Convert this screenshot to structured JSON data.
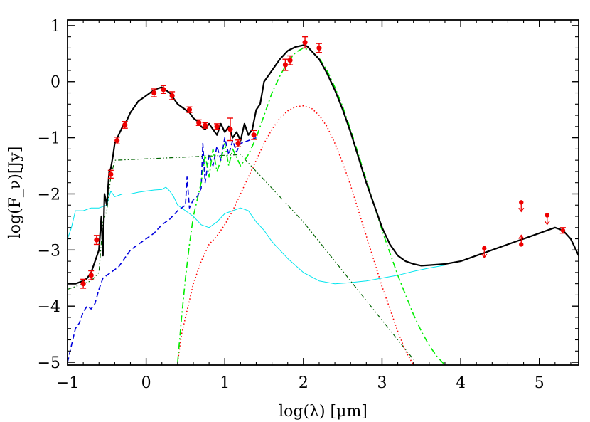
{
  "chart_data": {
    "type": "line",
    "title": "",
    "xlabel": "log(λ) [μm]",
    "ylabel": "log(F_ν)[Jy]",
    "xlim": [
      -1,
      5.5
    ],
    "ylim": [
      -5.05,
      1.1
    ],
    "x_ticks": [
      -1,
      0,
      1,
      2,
      3,
      4,
      5
    ],
    "x_tick_labels": [
      "−1",
      "0",
      "1",
      "2",
      "3",
      "4",
      "5"
    ],
    "y_ticks": [
      -5,
      -4,
      -3,
      -2,
      -1,
      0,
      1
    ],
    "y_tick_labels": [
      "−5",
      "−4",
      "−3",
      "−2",
      "−1",
      "0",
      "1"
    ],
    "grid": false,
    "colors": {
      "total": "#000000",
      "stellar": "#00e5ee",
      "hot_dust": "#0000dd",
      "warm_dust": "#00ee00",
      "cold_dust": "#ff0000",
      "scattered": "#006400",
      "points": "#ee0000"
    },
    "series": [
      {
        "key": "total",
        "style": "solid",
        "x": [
          -1.0,
          -0.9,
          -0.8,
          -0.75,
          -0.7,
          -0.65,
          -0.6,
          -0.57,
          -0.55,
          -0.53,
          -0.5,
          -0.47,
          -0.45,
          -0.42,
          -0.4,
          -0.35,
          -0.3,
          -0.25,
          -0.2,
          -0.15,
          -0.1,
          -0.05,
          0.0,
          0.05,
          0.1,
          0.15,
          0.2,
          0.25,
          0.3,
          0.35,
          0.4,
          0.45,
          0.5,
          0.55,
          0.6,
          0.65,
          0.7,
          0.75,
          0.8,
          0.85,
          0.9,
          0.95,
          1.0,
          1.05,
          1.1,
          1.15,
          1.2,
          1.25,
          1.3,
          1.35,
          1.4,
          1.45,
          1.5,
          1.55,
          1.6,
          1.7,
          1.8,
          1.9,
          2.0,
          2.05,
          2.1,
          2.2,
          2.3,
          2.4,
          2.5,
          2.6,
          2.7,
          2.8,
          2.9,
          3.0,
          3.1,
          3.2,
          3.3,
          3.4,
          3.5,
          3.6,
          3.8,
          4.0,
          4.2,
          4.4,
          4.6,
          4.8,
          5.0,
          5.1,
          5.2,
          5.3,
          5.4,
          5.5
        ],
        "y": [
          -3.6,
          -3.6,
          -3.55,
          -3.5,
          -3.4,
          -3.2,
          -3.0,
          -2.4,
          -3.1,
          -2.0,
          -2.2,
          -1.6,
          -1.55,
          -1.3,
          -1.1,
          -0.95,
          -0.8,
          -0.7,
          -0.55,
          -0.45,
          -0.35,
          -0.3,
          -0.25,
          -0.2,
          -0.15,
          -0.12,
          -0.1,
          -0.15,
          -0.2,
          -0.3,
          -0.4,
          -0.45,
          -0.5,
          -0.55,
          -0.65,
          -0.7,
          -0.8,
          -0.85,
          -0.75,
          -0.85,
          -0.95,
          -0.75,
          -0.9,
          -0.8,
          -1.0,
          -0.9,
          -1.05,
          -0.75,
          -0.95,
          -0.85,
          -0.5,
          -0.4,
          0.0,
          0.1,
          0.2,
          0.4,
          0.55,
          0.62,
          0.65,
          0.63,
          0.55,
          0.4,
          0.15,
          -0.15,
          -0.5,
          -0.9,
          -1.35,
          -1.8,
          -2.2,
          -2.6,
          -2.9,
          -3.1,
          -3.2,
          -3.25,
          -3.28,
          -3.27,
          -3.25,
          -3.2,
          -3.1,
          -3.0,
          -2.9,
          -2.8,
          -2.7,
          -2.65,
          -2.6,
          -2.65,
          -2.8,
          -3.1
        ]
      },
      {
        "key": "stellar",
        "style": "thin",
        "x": [
          -1.0,
          -0.95,
          -0.9,
          -0.8,
          -0.7,
          -0.6,
          -0.5,
          -0.45,
          -0.4,
          -0.3,
          -0.2,
          -0.1,
          0.0,
          0.1,
          0.2,
          0.25,
          0.3,
          0.35,
          0.4,
          0.5,
          0.6,
          0.7,
          0.8,
          0.9,
          1.0,
          1.1,
          1.2,
          1.3,
          1.4,
          1.5,
          1.6,
          1.8,
          2.0,
          2.2,
          2.4,
          2.6,
          2.8,
          3.0,
          3.2,
          3.4,
          3.6,
          3.8
        ],
        "y": [
          -2.8,
          -2.6,
          -2.3,
          -2.3,
          -2.25,
          -2.25,
          -2.2,
          -1.95,
          -2.05,
          -2.0,
          -2.0,
          -1.97,
          -1.95,
          -1.93,
          -1.92,
          -1.88,
          -1.95,
          -2.05,
          -2.2,
          -2.3,
          -2.4,
          -2.55,
          -2.6,
          -2.5,
          -2.35,
          -2.3,
          -2.25,
          -2.3,
          -2.5,
          -2.65,
          -2.85,
          -3.15,
          -3.4,
          -3.55,
          -3.6,
          -3.58,
          -3.55,
          -3.5,
          -3.45,
          -3.38,
          -3.32,
          -3.27
        ]
      },
      {
        "key": "hot_dust",
        "style": "dashed",
        "x": [
          -1.0,
          -0.95,
          -0.9,
          -0.85,
          -0.8,
          -0.75,
          -0.7,
          -0.65,
          -0.6,
          -0.55,
          -0.5,
          -0.45,
          -0.4,
          -0.35,
          -0.3,
          -0.25,
          -0.2,
          -0.15,
          -0.1,
          0.0,
          0.1,
          0.2,
          0.3,
          0.4,
          0.45,
          0.5,
          0.52,
          0.55,
          0.6,
          0.65,
          0.7,
          0.72,
          0.75,
          0.8,
          0.85,
          0.9,
          0.95,
          1.0,
          1.05,
          1.1,
          1.15,
          1.2,
          1.3,
          1.4
        ],
        "y": [
          -5.0,
          -4.7,
          -4.4,
          -4.3,
          -4.1,
          -4.0,
          -4.05,
          -3.95,
          -3.7,
          -3.5,
          -3.45,
          -3.4,
          -3.35,
          -3.3,
          -3.2,
          -3.1,
          -3.0,
          -2.95,
          -2.9,
          -2.8,
          -2.7,
          -2.55,
          -2.45,
          -2.3,
          -2.25,
          -2.2,
          -1.7,
          -2.25,
          -2.1,
          -2.05,
          -1.9,
          -1.1,
          -1.8,
          -1.3,
          -1.5,
          -1.15,
          -1.4,
          -1.0,
          -1.3,
          -1.05,
          -1.25,
          -1.1,
          -1.05,
          -1.0
        ]
      },
      {
        "key": "warm_dust",
        "style": "dashdot",
        "x": [
          0.4,
          0.45,
          0.5,
          0.55,
          0.6,
          0.65,
          0.7,
          0.75,
          0.8,
          0.85,
          0.9,
          0.95,
          1.0,
          1.05,
          1.1,
          1.2,
          1.3,
          1.4,
          1.5,
          1.6,
          1.7,
          1.8,
          1.9,
          2.0,
          2.1,
          2.2,
          2.3,
          2.4,
          2.5,
          2.6,
          2.7,
          2.8,
          2.9,
          3.0,
          3.1,
          3.2,
          3.3,
          3.4,
          3.5,
          3.6,
          3.7,
          3.8
        ],
        "y": [
          -5.0,
          -4.2,
          -3.5,
          -2.9,
          -2.4,
          -2.1,
          -1.8,
          -1.3,
          -1.7,
          -1.2,
          -1.6,
          -1.4,
          -1.1,
          -1.5,
          -1.2,
          -1.5,
          -1.3,
          -1.0,
          -0.6,
          -0.2,
          0.1,
          0.35,
          0.52,
          0.6,
          0.55,
          0.42,
          0.2,
          -0.1,
          -0.45,
          -0.85,
          -1.3,
          -1.75,
          -2.2,
          -2.65,
          -3.05,
          -3.45,
          -3.8,
          -4.15,
          -4.45,
          -4.7,
          -4.9,
          -5.05
        ]
      },
      {
        "key": "cold_dust",
        "style": "dotted",
        "x": [
          0.4,
          0.45,
          0.5,
          0.6,
          0.7,
          0.8,
          0.9,
          1.0,
          1.1,
          1.2,
          1.3,
          1.4,
          1.5,
          1.6,
          1.7,
          1.8,
          1.9,
          2.0,
          2.1,
          2.2,
          2.3,
          2.4,
          2.5,
          2.6,
          2.7,
          2.8,
          2.9,
          3.0,
          3.1,
          3.2,
          3.3,
          3.4
        ],
        "y": [
          -5.0,
          -4.5,
          -4.2,
          -3.6,
          -3.2,
          -2.9,
          -2.75,
          -2.55,
          -2.3,
          -2.0,
          -1.7,
          -1.4,
          -1.1,
          -0.85,
          -0.65,
          -0.52,
          -0.45,
          -0.43,
          -0.47,
          -0.6,
          -0.8,
          -1.1,
          -1.45,
          -1.85,
          -2.3,
          -2.75,
          -3.2,
          -3.65,
          -4.05,
          -4.45,
          -4.8,
          -5.05
        ]
      },
      {
        "key": "scattered",
        "style": "dashdotdot",
        "x": [
          -1.0,
          -0.9,
          -0.8,
          -0.7,
          -0.6,
          -0.55,
          -0.5,
          -0.45,
          -0.4,
          1.2,
          1.4,
          1.6,
          1.8,
          2.0,
          2.2,
          2.4,
          2.6,
          2.8,
          3.0,
          3.2,
          3.4
        ],
        "y": [
          -3.7,
          -3.65,
          -3.6,
          -3.55,
          -3.4,
          -2.5,
          -2.3,
          -1.7,
          -1.4,
          -1.3,
          -1.6,
          -1.9,
          -2.2,
          -2.5,
          -2.85,
          -3.2,
          -3.55,
          -3.9,
          -4.25,
          -4.6,
          -4.95
        ]
      }
    ],
    "points": [
      {
        "x": -0.8,
        "y": -3.6,
        "err": 0.08
      },
      {
        "x": -0.7,
        "y": -3.45,
        "err": 0.08
      },
      {
        "x": -0.63,
        "y": -2.82,
        "err": 0.08
      },
      {
        "x": -0.45,
        "y": -1.65,
        "err": 0.07
      },
      {
        "x": -0.37,
        "y": -1.05,
        "err": 0.06
      },
      {
        "x": -0.27,
        "y": -0.77,
        "err": 0.06
      },
      {
        "x": 0.1,
        "y": -0.2,
        "err": 0.07
      },
      {
        "x": 0.22,
        "y": -0.14,
        "err": 0.07
      },
      {
        "x": 0.33,
        "y": -0.25,
        "err": 0.07
      },
      {
        "x": 0.55,
        "y": -0.5,
        "err": 0.05
      },
      {
        "x": 0.67,
        "y": -0.73,
        "err": 0.05
      },
      {
        "x": 0.75,
        "y": -0.78,
        "err": 0.05
      },
      {
        "x": 0.9,
        "y": -0.8,
        "err": 0.05
      },
      {
        "x": 1.07,
        "y": -0.85,
        "err": 0.2
      },
      {
        "x": 1.17,
        "y": -1.1,
        "err": 0.06
      },
      {
        "x": 1.37,
        "y": -0.95,
        "err": 0.08
      },
      {
        "x": 1.77,
        "y": 0.3,
        "err": 0.1
      },
      {
        "x": 1.83,
        "y": 0.38,
        "err": 0.08
      },
      {
        "x": 2.02,
        "y": 0.7,
        "err": 0.1
      },
      {
        "x": 2.2,
        "y": 0.6,
        "err": 0.08
      }
    ],
    "limits": [
      {
        "x": 4.3,
        "y": -2.97,
        "dir": "down"
      },
      {
        "x": 4.77,
        "y": -2.15,
        "dir": "down"
      },
      {
        "x": 4.77,
        "y": -2.9,
        "dir": "up"
      },
      {
        "x": 5.1,
        "y": -2.38,
        "dir": "down"
      },
      {
        "x": 5.3,
        "y": -2.65,
        "dir": "point"
      }
    ]
  }
}
